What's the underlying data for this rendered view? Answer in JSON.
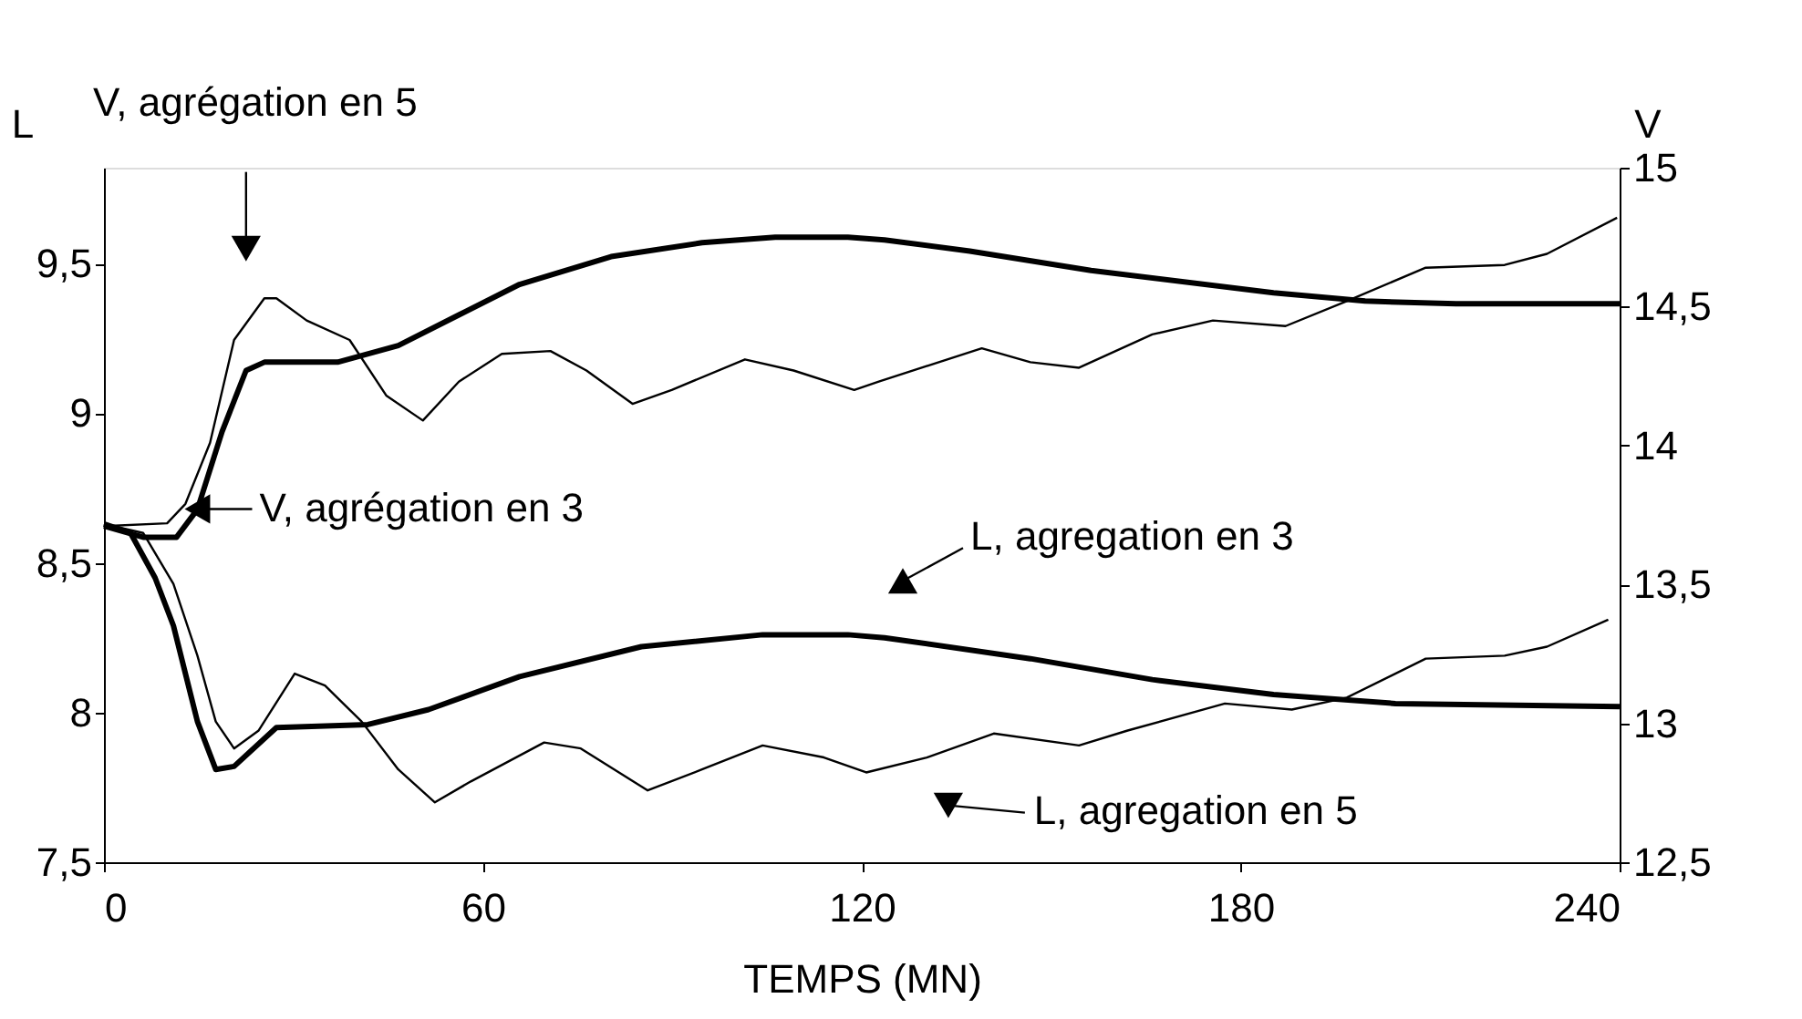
{
  "chart_data": {
    "type": "line",
    "xlabel": "TEMPS (MN)",
    "ylabel": "L",
    "y2label": "V",
    "xlim": [
      0,
      240
    ],
    "xticks": [
      0,
      60,
      120,
      180,
      240
    ],
    "ylim": [
      7.5,
      9.82
    ],
    "yticks": [
      {
        "value": 7.5,
        "label": "7,5"
      },
      8,
      {
        "value": 8.5,
        "label": "8,5"
      },
      9,
      {
        "value": 9.5,
        "label": "9,5"
      }
    ],
    "y2lim": [
      12.5,
      15
    ],
    "y2ticks": [
      {
        "value": 12.5,
        "label": "12,5"
      },
      13,
      {
        "value": 13.5,
        "label": "13,5"
      },
      14,
      {
        "value": 14.5,
        "label": "14,5"
      },
      15
    ],
    "grid": false,
    "marker": "none",
    "line_style": "solid",
    "series": [
      {
        "color": "#000000",
        "axis": "y2",
        "x": [
          0,
          6.2,
          11.5,
          14.8,
          18.7,
          22.5,
          25.4,
          37,
          46.6,
          56.2,
          65.8,
          80.3,
          94.7,
          106.3,
          117.8,
          123.6,
          137.1,
          156.3,
          185.2,
          199.7,
          214.1,
          240
        ],
        "values": [
          13.71,
          13.67,
          13.67,
          13.77,
          14.05,
          14.27,
          14.3,
          14.3,
          14.36,
          14.47,
          14.58,
          14.68,
          14.73,
          14.75,
          14.75,
          14.74,
          14.7,
          14.63,
          14.55,
          14.52,
          14.51,
          14.51
        ]
      },
      {
        "color": "#000000",
        "axis": "y2",
        "x": [
          0,
          10,
          12.9,
          16.8,
          20.6,
          25.4,
          27.3,
          32.1,
          38.9,
          44.7,
          50.5,
          56.2,
          63,
          70.7,
          76.4,
          83.7,
          89.9,
          101.5,
          109.2,
          118.8,
          122.7,
          139,
          146.7,
          154.4,
          166,
          175.6,
          187.1,
          196.8,
          209.3,
          221.8,
          228.5,
          239.6
        ],
        "values": [
          13.71,
          13.72,
          13.79,
          14.01,
          14.38,
          14.53,
          14.53,
          14.45,
          14.38,
          14.18,
          14.09,
          14.23,
          14.33,
          14.34,
          14.27,
          14.15,
          14.2,
          14.31,
          14.27,
          14.2,
          14.23,
          14.35,
          14.3,
          14.28,
          14.4,
          14.45,
          14.43,
          14.52,
          14.64,
          14.65,
          14.69,
          14.82
        ]
      },
      {
        "color": "#000000",
        "x": [
          0,
          4.2,
          8.1,
          11,
          14.8,
          17.7,
          20.6,
          27.3,
          41.8,
          51.4,
          65.8,
          85.1,
          104.3,
          117.8,
          123.6,
          146.7,
          166,
          185.2,
          204.5,
          240
        ],
        "values": [
          8.63,
          8.6,
          8.45,
          8.29,
          7.97,
          7.81,
          7.82,
          7.95,
          7.96,
          8.01,
          8.12,
          8.22,
          8.26,
          8.26,
          8.25,
          8.18,
          8.11,
          8.06,
          8.03,
          8.02
        ]
      },
      {
        "color": "#000000",
        "x": [
          0,
          6.2,
          11,
          14.8,
          17.7,
          20.6,
          24.5,
          30.2,
          35,
          40.8,
          46.6,
          52.4,
          58.1,
          69.7,
          75.5,
          86.1,
          94.7,
          104.3,
          114,
          120.7,
          130.3,
          140.9,
          154.4,
          162.1,
          177.5,
          188.1,
          196.8,
          209.3,
          221.8,
          228.5,
          238.2
        ],
        "values": [
          8.63,
          8.6,
          8.43,
          8.19,
          7.97,
          7.88,
          7.94,
          8.13,
          8.09,
          7.97,
          7.81,
          7.7,
          7.77,
          7.9,
          7.88,
          7.74,
          7.81,
          7.89,
          7.85,
          7.8,
          7.85,
          7.93,
          7.89,
          7.94,
          8.03,
          8.01,
          8.05,
          8.18,
          8.19,
          8.22,
          8.31
        ]
      }
    ],
    "annotations": [
      {
        "text": "V, agrégation en 5",
        "x": 22.5,
        "y": 9.55
      },
      {
        "text": "V, agrégation en 3",
        "x": 14.8,
        "y": 8.68
      },
      {
        "text": "L, agregation en 3",
        "x": 126.5,
        "y": 8.44
      },
      {
        "text": "L, agregation en 5",
        "x": 133.7,
        "y": 7.69
      }
    ]
  }
}
